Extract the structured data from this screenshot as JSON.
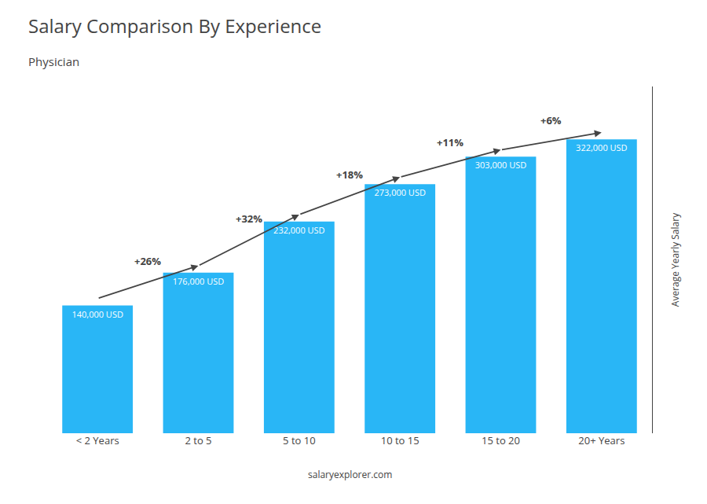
{
  "chart_data": {
    "type": "bar",
    "title": "Salary Comparison By Experience",
    "subtitle": "Physician",
    "ylabel": "Average Yearly Salary",
    "categories": [
      "< 2 Years",
      "2 to 5",
      "5 to 10",
      "10 to 15",
      "15 to 20",
      "20+ Years"
    ],
    "values": [
      140000,
      176000,
      232000,
      273000,
      303000,
      322000
    ],
    "value_labels": [
      "140,000 USD",
      "176,000 USD",
      "232,000 USD",
      "273,000 USD",
      "303,000 USD",
      "322,000 USD"
    ],
    "data_labels": true,
    "annotations": [
      "+26%",
      "+32%",
      "+18%",
      "+11%",
      "+6%"
    ],
    "watermark": "salaryexplorer.com",
    "color": "#29B6F6",
    "ylim": [
      0,
      380000
    ],
    "grid": false,
    "tick_labels": "x"
  }
}
